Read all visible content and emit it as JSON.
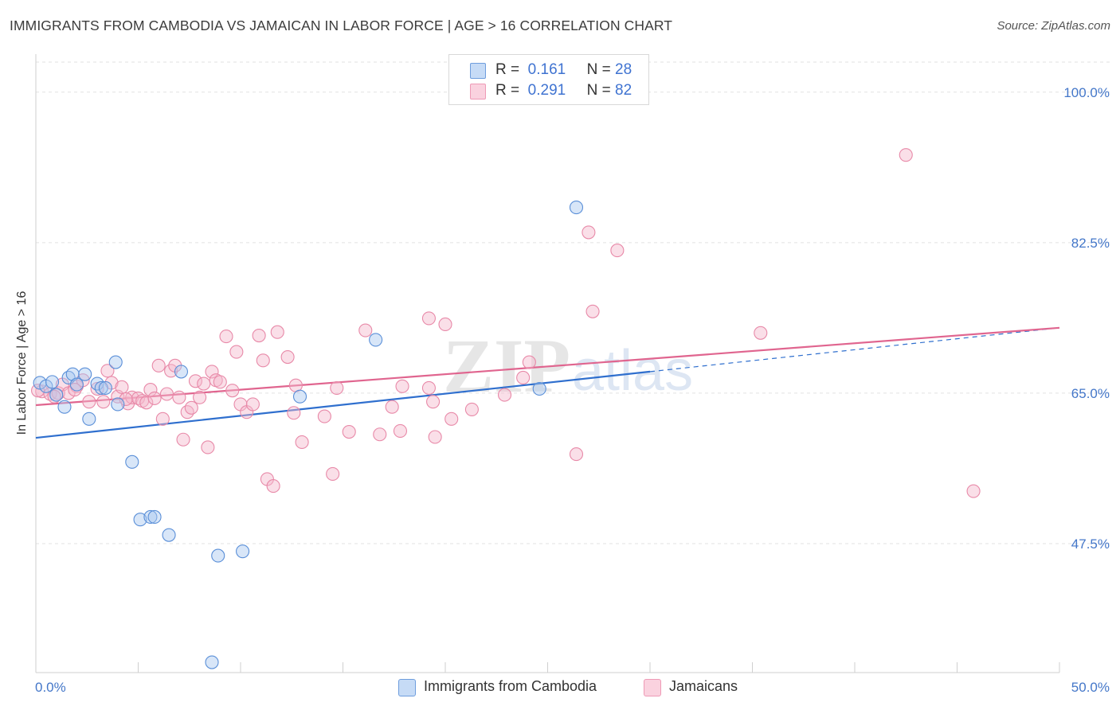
{
  "title": "IMMIGRANTS FROM CAMBODIA VS JAMAICAN IN LABOR FORCE | AGE > 16 CORRELATION CHART",
  "source": "Source: ZipAtlas.com",
  "watermark": {
    "zip": "ZIP",
    "atlas": "atlas"
  },
  "legend": [
    {
      "r_label": "R =",
      "r_value": "0.161",
      "n_label": "N =",
      "n_value": "28"
    },
    {
      "r_label": "R =",
      "r_value": "0.291",
      "n_label": "N =",
      "n_value": "82"
    }
  ],
  "colors": {
    "blue_fill": "#a9c8ef",
    "blue_stroke": "#5a8fd8",
    "blue_line": "#2f6fce",
    "pink_fill": "#f5b8cb",
    "pink_stroke": "#e889a8",
    "pink_line": "#e0658f",
    "tick_label": "#4477c9"
  },
  "chart_data": {
    "type": "scatter",
    "xlabel": "",
    "ylabel": "In Labor Force | Age > 16",
    "xlim": [
      0,
      50
    ],
    "ylim": [
      32.5,
      103.5
    ],
    "x_tick_labels": [
      "0.0%",
      "50.0%"
    ],
    "y_ticks": [
      47.5,
      65.0,
      82.5,
      100.0
    ],
    "y_tick_labels": [
      "47.5%",
      "65.0%",
      "82.5%",
      "100.0%"
    ],
    "grid": true,
    "series": [
      {
        "name": "Immigrants from Cambodia",
        "color": "blue",
        "points": [
          [
            0.2,
            66.2
          ],
          [
            0.5,
            65.8
          ],
          [
            0.8,
            66.3
          ],
          [
            1.0,
            64.8
          ],
          [
            1.4,
            63.4
          ],
          [
            1.6,
            66.8
          ],
          [
            1.8,
            67.2
          ],
          [
            2.0,
            66.0
          ],
          [
            2.4,
            67.2
          ],
          [
            2.6,
            62.0
          ],
          [
            3.0,
            66.1
          ],
          [
            3.2,
            65.6
          ],
          [
            3.4,
            65.6
          ],
          [
            3.9,
            68.6
          ],
          [
            4.0,
            63.7
          ],
          [
            4.7,
            57.0
          ],
          [
            5.1,
            50.3
          ],
          [
            5.6,
            50.6
          ],
          [
            5.8,
            50.6
          ],
          [
            6.5,
            48.5
          ],
          [
            7.1,
            67.5
          ],
          [
            8.9,
            46.1
          ],
          [
            8.6,
            33.7
          ],
          [
            10.1,
            46.6
          ],
          [
            12.9,
            64.6
          ],
          [
            16.6,
            71.2
          ],
          [
            24.6,
            65.5
          ],
          [
            26.4,
            86.6
          ]
        ],
        "trend": {
          "x0": 0,
          "y0": 59.8,
          "x1": 30.0,
          "y1": 67.5,
          "dashed_to_x": 50,
          "dashed_to_y": 72.6
        }
      },
      {
        "name": "Jamaicans",
        "color": "pink",
        "points": [
          [
            0.3,
            65.2
          ],
          [
            0.7,
            64.9
          ],
          [
            1.1,
            65.0
          ],
          [
            1.3,
            66.0
          ],
          [
            1.6,
            65.0
          ],
          [
            2.0,
            65.8
          ],
          [
            2.3,
            66.5
          ],
          [
            2.6,
            64.0
          ],
          [
            3.0,
            65.5
          ],
          [
            3.3,
            64.0
          ],
          [
            3.5,
            67.6
          ],
          [
            3.7,
            66.2
          ],
          [
            4.0,
            64.6
          ],
          [
            4.2,
            65.7
          ],
          [
            4.5,
            63.8
          ],
          [
            4.7,
            64.5
          ],
          [
            5.0,
            64.4
          ],
          [
            5.2,
            64.1
          ],
          [
            5.4,
            63.9
          ],
          [
            5.6,
            65.4
          ],
          [
            5.8,
            64.4
          ],
          [
            6.0,
            68.2
          ],
          [
            6.2,
            62.0
          ],
          [
            6.4,
            64.9
          ],
          [
            6.6,
            67.6
          ],
          [
            6.8,
            68.2
          ],
          [
            7.0,
            64.5
          ],
          [
            7.2,
            59.6
          ],
          [
            7.4,
            62.8
          ],
          [
            7.6,
            63.3
          ],
          [
            7.8,
            66.4
          ],
          [
            8.0,
            64.5
          ],
          [
            8.2,
            66.1
          ],
          [
            8.4,
            58.7
          ],
          [
            8.6,
            67.5
          ],
          [
            8.8,
            66.5
          ],
          [
            9.0,
            66.3
          ],
          [
            9.3,
            71.6
          ],
          [
            9.6,
            65.3
          ],
          [
            9.8,
            69.8
          ],
          [
            10.0,
            63.7
          ],
          [
            10.3,
            62.8
          ],
          [
            10.6,
            63.7
          ],
          [
            10.9,
            71.7
          ],
          [
            11.1,
            68.8
          ],
          [
            11.3,
            55.0
          ],
          [
            11.6,
            54.2
          ],
          [
            11.8,
            72.1
          ],
          [
            12.3,
            69.2
          ],
          [
            12.6,
            62.7
          ],
          [
            12.7,
            65.9
          ],
          [
            13.0,
            59.3
          ],
          [
            14.1,
            62.3
          ],
          [
            14.5,
            55.6
          ],
          [
            14.7,
            65.6
          ],
          [
            15.3,
            60.5
          ],
          [
            16.1,
            72.3
          ],
          [
            16.8,
            60.2
          ],
          [
            17.4,
            63.4
          ],
          [
            17.8,
            60.6
          ],
          [
            17.9,
            65.8
          ],
          [
            19.2,
            65.6
          ],
          [
            19.4,
            64.0
          ],
          [
            19.2,
            73.7
          ],
          [
            19.5,
            59.9
          ],
          [
            20.0,
            73.0
          ],
          [
            20.3,
            62.0
          ],
          [
            21.3,
            63.1
          ],
          [
            22.9,
            64.8
          ],
          [
            23.8,
            66.8
          ],
          [
            24.1,
            68.6
          ],
          [
            26.4,
            57.9
          ],
          [
            27.2,
            74.5
          ],
          [
            27.0,
            83.7
          ],
          [
            28.4,
            81.6
          ],
          [
            35.4,
            72.0
          ],
          [
            42.5,
            92.7
          ],
          [
            45.8,
            53.6
          ],
          [
            0.1,
            65.3
          ],
          [
            1.9,
            65.4
          ],
          [
            0.9,
            64.6
          ],
          [
            4.4,
            64.3
          ]
        ],
        "trend": {
          "x0": 0,
          "y0": 63.6,
          "x1": 50,
          "y1": 72.6
        }
      }
    ]
  }
}
